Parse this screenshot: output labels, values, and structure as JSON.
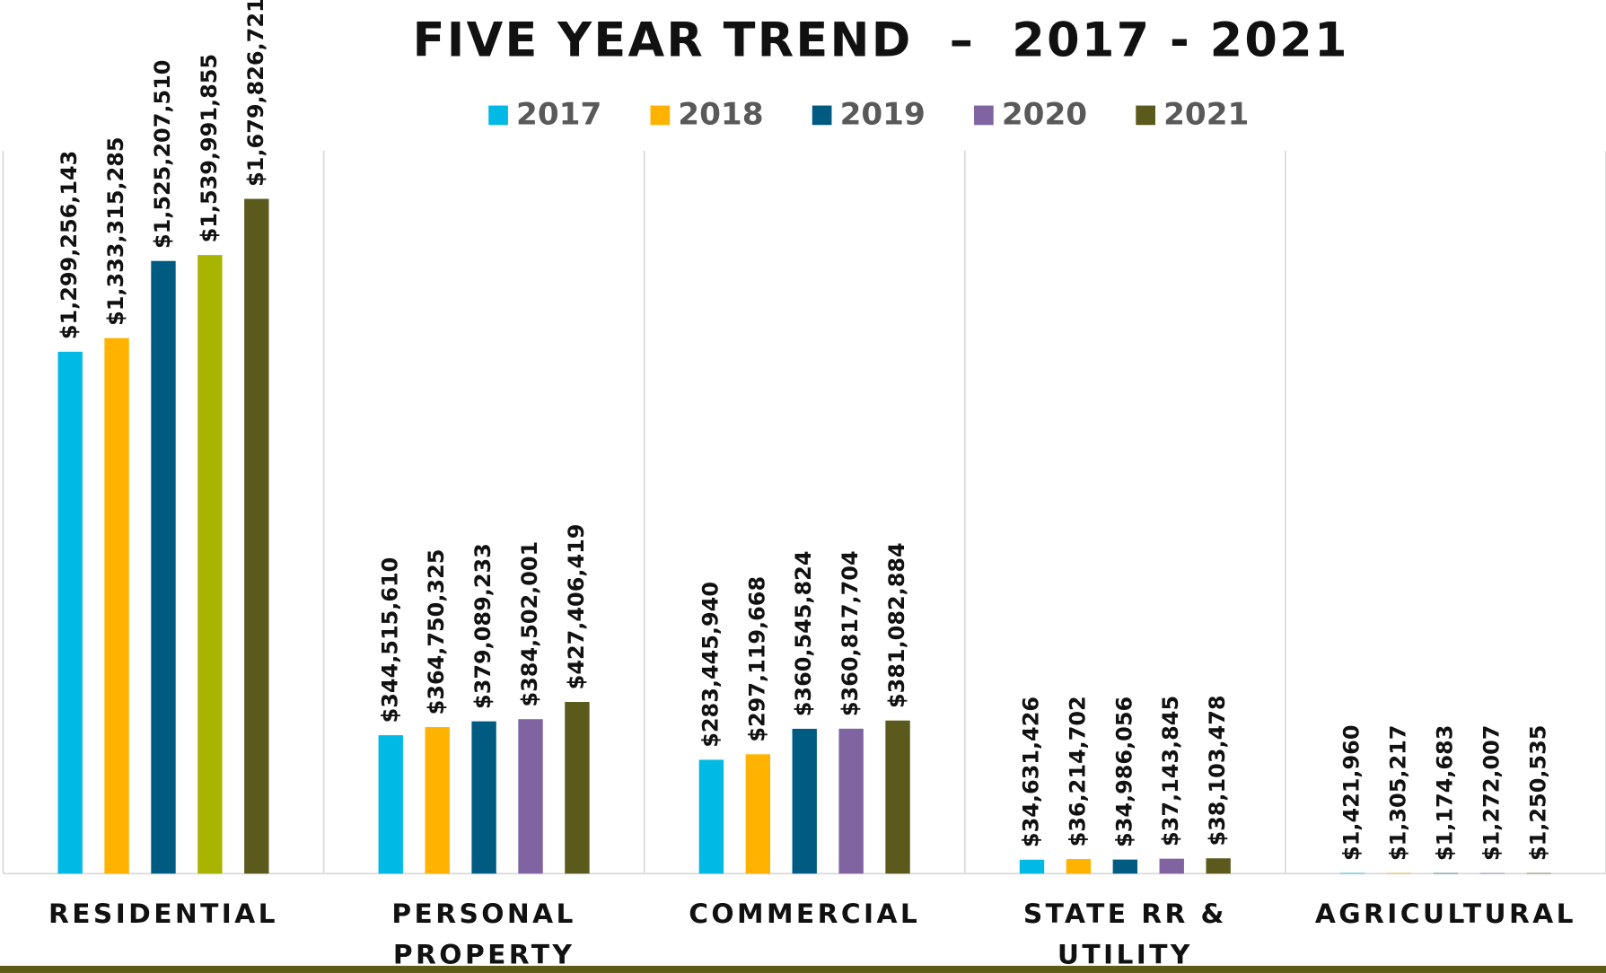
{
  "chart_data": {
    "type": "bar",
    "title": "FIVE YEAR TREND  –  2017 - 2021",
    "categories": [
      "RESIDENTIAL",
      "PERSONAL PROPERTY",
      "COMMERCIAL",
      "STATE RR & UTILITY",
      "AGRICULTURAL"
    ],
    "series": [
      {
        "name": "2017",
        "color": "#00b9e4",
        "values": [
          1299256143,
          344515610,
          283445940,
          34631426,
          1421960
        ],
        "value_labels": [
          "$1,299,256,143",
          "$344,515,610",
          "$283,445,940",
          "$34,631,426",
          "$1,421,960"
        ]
      },
      {
        "name": "2018",
        "color": "#ffb300",
        "values": [
          1333315285,
          364750325,
          297119668,
          36214702,
          1305217
        ],
        "value_labels": [
          "$1,333,315,285",
          "$364,750,325",
          "$297,119,668",
          "$36,214,702",
          "$1,305,217"
        ]
      },
      {
        "name": "2019",
        "color": "#005b82",
        "values": [
          1525207510,
          379089233,
          360545824,
          34986056,
          1174683
        ],
        "value_labels": [
          "$1,525,207,510",
          "$379,089,233",
          "$360,545,824",
          "$34,986,056",
          "$1,174,683"
        ]
      },
      {
        "name": "2020",
        "color": "#8064a2",
        "colors": [
          "#a9b400",
          "#8064a2",
          "#8064a2",
          "#8064a2",
          "#8064a2"
        ],
        "values": [
          1539991855,
          384502001,
          360817704,
          37143845,
          1272007
        ],
        "value_labels": [
          "$1,539,991,855",
          "$384,502,001",
          "$360,817,704",
          "$37,143,845",
          "$1,272,007"
        ]
      },
      {
        "name": "2021",
        "color": "#5b5a1c",
        "values": [
          1679826721,
          427406419,
          381082884,
          38103478,
          1250535
        ],
        "value_labels": [
          "$1,679,826,721",
          "$427,406,419",
          "$381,082,884",
          "$38,103,478",
          "$1,250,535"
        ]
      }
    ],
    "ylim": [
      0,
      1800000000
    ],
    "legend": "top"
  }
}
